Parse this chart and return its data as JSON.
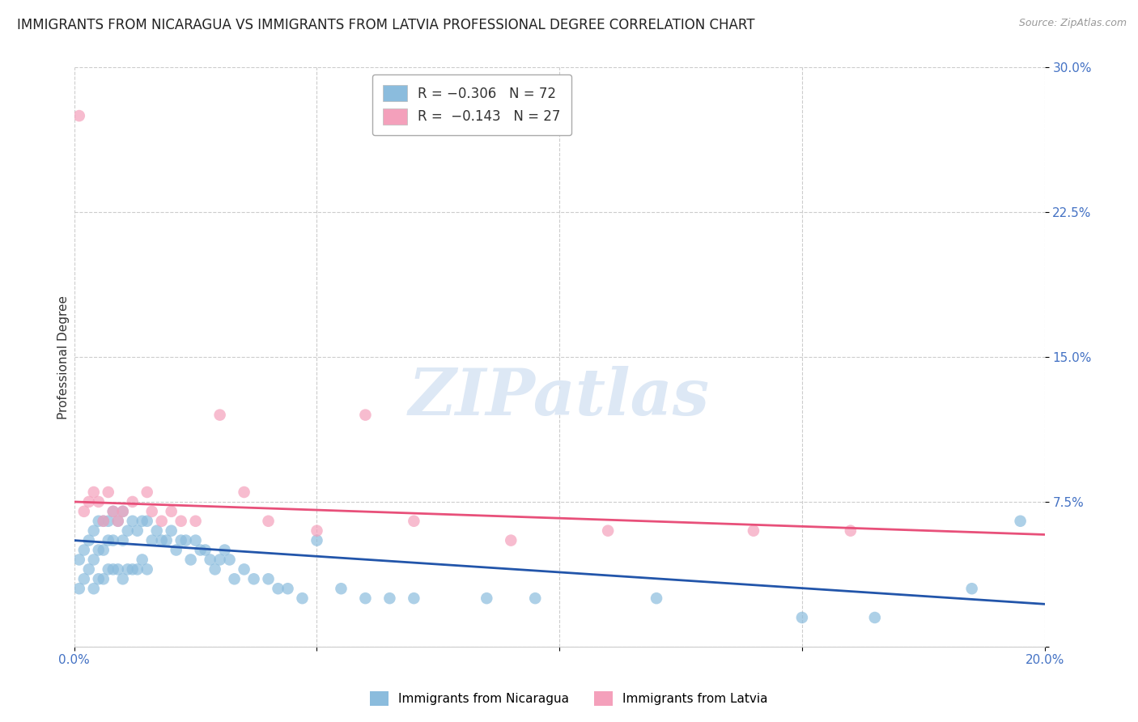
{
  "title": "IMMIGRANTS FROM NICARAGUA VS IMMIGRANTS FROM LATVIA PROFESSIONAL DEGREE CORRELATION CHART",
  "source": "Source: ZipAtlas.com",
  "ylabel": "Professional Degree",
  "xlim": [
    0.0,
    0.2
  ],
  "ylim": [
    0.0,
    0.3
  ],
  "xticks": [
    0.0,
    0.05,
    0.1,
    0.15,
    0.2
  ],
  "yticks": [
    0.0,
    0.075,
    0.15,
    0.225,
    0.3
  ],
  "xtick_labels": [
    "0.0%",
    "",
    "",
    "",
    "20.0%"
  ],
  "ytick_labels": [
    "",
    "7.5%",
    "15.0%",
    "22.5%",
    "30.0%"
  ],
  "background_color": "#ffffff",
  "grid_color": "#cccccc",
  "watermark": "ZIPatlas",
  "series": [
    {
      "label": "Immigrants from Nicaragua",
      "R": -0.306,
      "N": 72,
      "color": "#8bbcdd",
      "line_color": "#2255aa",
      "line_style": "-",
      "x": [
        0.001,
        0.001,
        0.002,
        0.002,
        0.003,
        0.003,
        0.004,
        0.004,
        0.004,
        0.005,
        0.005,
        0.005,
        0.006,
        0.006,
        0.006,
        0.007,
        0.007,
        0.007,
        0.008,
        0.008,
        0.008,
        0.009,
        0.009,
        0.01,
        0.01,
        0.01,
        0.011,
        0.011,
        0.012,
        0.012,
        0.013,
        0.013,
        0.014,
        0.014,
        0.015,
        0.015,
        0.016,
        0.017,
        0.018,
        0.019,
        0.02,
        0.021,
        0.022,
        0.023,
        0.024,
        0.025,
        0.026,
        0.027,
        0.028,
        0.029,
        0.03,
        0.031,
        0.032,
        0.033,
        0.035,
        0.037,
        0.04,
        0.042,
        0.044,
        0.047,
        0.05,
        0.055,
        0.06,
        0.065,
        0.07,
        0.085,
        0.095,
        0.12,
        0.15,
        0.165,
        0.185,
        0.195
      ],
      "y": [
        0.045,
        0.03,
        0.05,
        0.035,
        0.055,
        0.04,
        0.06,
        0.045,
        0.03,
        0.065,
        0.05,
        0.035,
        0.065,
        0.05,
        0.035,
        0.065,
        0.055,
        0.04,
        0.07,
        0.055,
        0.04,
        0.065,
        0.04,
        0.07,
        0.055,
        0.035,
        0.06,
        0.04,
        0.065,
        0.04,
        0.06,
        0.04,
        0.065,
        0.045,
        0.065,
        0.04,
        0.055,
        0.06,
        0.055,
        0.055,
        0.06,
        0.05,
        0.055,
        0.055,
        0.045,
        0.055,
        0.05,
        0.05,
        0.045,
        0.04,
        0.045,
        0.05,
        0.045,
        0.035,
        0.04,
        0.035,
        0.035,
        0.03,
        0.03,
        0.025,
        0.055,
        0.03,
        0.025,
        0.025,
        0.025,
        0.025,
        0.025,
        0.025,
        0.015,
        0.015,
        0.03,
        0.065
      ],
      "trend_x": [
        0.0,
        0.2
      ],
      "trend_y": [
        0.055,
        0.022
      ]
    },
    {
      "label": "Immigrants from Latvia",
      "R": -0.143,
      "N": 27,
      "color": "#f4a0bb",
      "line_color": "#e8507a",
      "line_style": "-",
      "x": [
        0.001,
        0.002,
        0.003,
        0.004,
        0.005,
        0.006,
        0.007,
        0.008,
        0.009,
        0.01,
        0.012,
        0.015,
        0.016,
        0.018,
        0.02,
        0.022,
        0.025,
        0.03,
        0.035,
        0.04,
        0.05,
        0.06,
        0.07,
        0.09,
        0.11,
        0.14,
        0.16
      ],
      "y": [
        0.275,
        0.07,
        0.075,
        0.08,
        0.075,
        0.065,
        0.08,
        0.07,
        0.065,
        0.07,
        0.075,
        0.08,
        0.07,
        0.065,
        0.07,
        0.065,
        0.065,
        0.12,
        0.08,
        0.065,
        0.06,
        0.12,
        0.065,
        0.055,
        0.06,
        0.06,
        0.06
      ],
      "trend_x": [
        0.0,
        0.2
      ],
      "trend_y": [
        0.075,
        0.058
      ]
    }
  ],
  "legend_entries": [
    {
      "label": "R = −0.306   N = 72",
      "color": "#8bbcdd"
    },
    {
      "label": "R =  −0.143   N = 27",
      "color": "#f4a0bb"
    }
  ],
  "legend_R_color": "#e05080",
  "legend_text_color": "#333333",
  "title_fontsize": 12,
  "axis_label_fontsize": 11,
  "tick_fontsize": 11,
  "source_fontsize": 9,
  "watermark_color": "#dde8f5",
  "ytick_color": "#4472c4",
  "xtick_color": "#4472c4"
}
